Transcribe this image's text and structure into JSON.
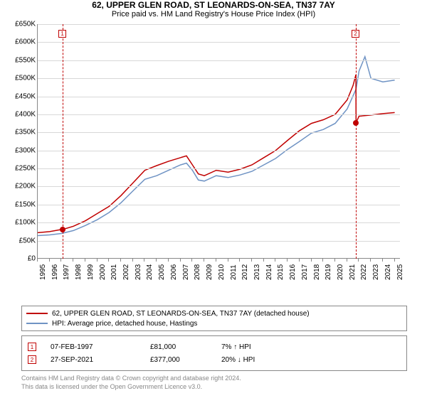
{
  "title_line1": "62, UPPER GLEN ROAD, ST LEONARDS-ON-SEA, TN37 7AY",
  "title_line2": "Price paid vs. HM Land Registry's House Price Index (HPI)",
  "chart": {
    "type": "line",
    "background_color": "#ffffff",
    "grid_color": "#d8d8d8",
    "axis_color": "#888888",
    "xlim": [
      1995,
      2025.5
    ],
    "ylim": [
      0,
      650000
    ],
    "ytick_step": 50000,
    "ytick_prefix": "£",
    "ytick_suffix": "K",
    "ytick_divisor": 1000,
    "x_ticks": [
      1995,
      1996,
      1997,
      1998,
      1999,
      2000,
      2001,
      2002,
      2003,
      2004,
      2005,
      2006,
      2007,
      2008,
      2009,
      2010,
      2011,
      2012,
      2013,
      2014,
      2015,
      2016,
      2017,
      2018,
      2019,
      2020,
      2021,
      2022,
      2023,
      2024,
      2025
    ],
    "label_fontsize": 10,
    "series": [
      {
        "name": "price_paid",
        "label": "62, UPPER GLEN ROAD, ST LEONARDS-ON-SEA, TN37 7AY (detached house)",
        "color": "#c00000",
        "line_width": 1.5,
        "x": [
          1995,
          1996,
          1997,
          1997.1,
          1998,
          1999,
          2000,
          2001,
          2002,
          2003,
          2004,
          2005,
          2006,
          2007,
          2007.5,
          2008,
          2008.5,
          2009,
          2010,
          2011,
          2012,
          2013,
          2014,
          2015,
          2016,
          2017,
          2018,
          2019,
          2020,
          2021,
          2021.5,
          2021.74,
          2021.75,
          2022,
          2023,
          2024,
          2025
        ],
        "y": [
          72000,
          75000,
          81000,
          81000,
          90000,
          105000,
          125000,
          145000,
          175000,
          210000,
          245000,
          258000,
          270000,
          280000,
          285000,
          260000,
          235000,
          230000,
          245000,
          240000,
          248000,
          260000,
          280000,
          300000,
          328000,
          355000,
          375000,
          385000,
          400000,
          440000,
          480000,
          510000,
          377000,
          395000,
          398000,
          402000,
          405000
        ]
      },
      {
        "name": "hpi",
        "label": "HPI: Average price, detached house, Hastings",
        "color": "#6f93c4",
        "line_width": 1.5,
        "x": [
          1995,
          1996,
          1997,
          1998,
          1999,
          2000,
          2001,
          2002,
          2003,
          2004,
          2005,
          2006,
          2007,
          2007.5,
          2008,
          2008.5,
          2009,
          2010,
          2011,
          2012,
          2013,
          2014,
          2015,
          2016,
          2017,
          2018,
          2019,
          2020,
          2021,
          2021.75,
          2022,
          2022.5,
          2023,
          2024,
          2025
        ],
        "y": [
          64000,
          66000,
          70000,
          78000,
          92000,
          108000,
          128000,
          155000,
          188000,
          220000,
          230000,
          245000,
          260000,
          265000,
          245000,
          218000,
          215000,
          230000,
          225000,
          232000,
          242000,
          260000,
          278000,
          303000,
          325000,
          348000,
          358000,
          375000,
          415000,
          470000,
          520000,
          560000,
          500000,
          490000,
          495000
        ]
      }
    ],
    "sale_markers": [
      {
        "n": "1",
        "x": 1997.1,
        "y": 81000,
        "date": "07-FEB-1997",
        "price": "£81,000",
        "delta": "7% ↑ HPI"
      },
      {
        "n": "2",
        "x": 2021.74,
        "y": 377000,
        "date": "27-SEP-2021",
        "price": "£377,000",
        "delta": "20% ↓ HPI"
      }
    ],
    "marker_color": "#c00000",
    "marker_dot_color": "#c00000"
  },
  "footer_line1": "Contains HM Land Registry data © Crown copyright and database right 2024.",
  "footer_line2": "This data is licensed under the Open Government Licence v3.0."
}
